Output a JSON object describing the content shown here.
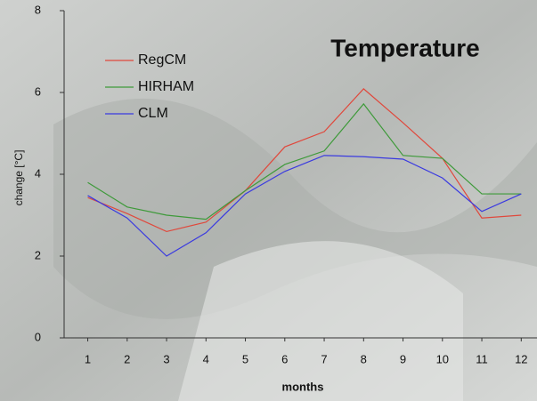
{
  "chart_data": {
    "type": "line",
    "title": "Temperature",
    "x_label": "months",
    "y_label": "change [°C]",
    "x": [
      1,
      2,
      3,
      4,
      5,
      6,
      7,
      8,
      9,
      10,
      11,
      12
    ],
    "series": [
      {
        "name": "RegCM",
        "color": "#e0483c",
        "values": [
          3.43,
          3.04,
          2.6,
          2.83,
          3.6,
          4.67,
          5.04,
          6.09,
          5.26,
          4.39,
          2.93,
          3.0
        ]
      },
      {
        "name": "HIRHAM",
        "color": "#3e9a3a",
        "values": [
          3.8,
          3.2,
          3.0,
          2.9,
          3.6,
          4.24,
          4.57,
          5.72,
          4.46,
          4.39,
          3.52,
          3.52
        ]
      },
      {
        "name": "CLM",
        "color": "#3a3ae0",
        "values": [
          3.48,
          2.93,
          2.0,
          2.57,
          3.52,
          4.07,
          4.46,
          4.43,
          4.37,
          3.91,
          3.09,
          3.52
        ]
      }
    ],
    "xlim": [
      0.4,
      12.4
    ],
    "xticks": [
      1,
      2,
      3,
      4,
      5,
      6,
      7,
      8,
      9,
      10,
      11,
      12
    ],
    "ylim": [
      0,
      8
    ],
    "yticks": [
      0,
      2,
      4,
      6,
      8
    ]
  }
}
